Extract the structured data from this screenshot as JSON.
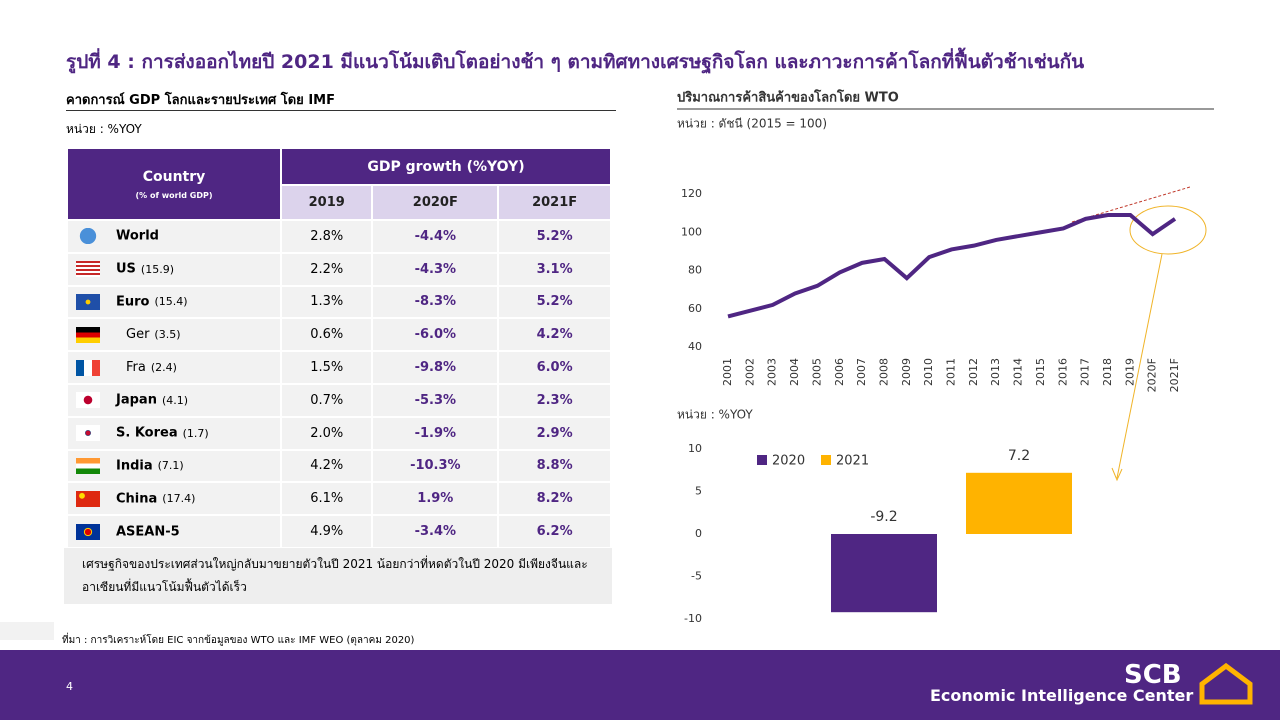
{
  "title": "รูปที่ 4 : การส่งออกไทยปี 2021 มีแนวโน้มเติบโตอย่างช้า ๆ ตามทิศทางเศรษฐกิจโลก และภาวะการค้าโลกที่ฟื้นตัวช้าเช่นกัน",
  "table_section": {
    "title": "คาดการณ์ GDP โลกและรายประเทศ โดย IMF",
    "unit": "หน่วย : %YOY"
  },
  "table": {
    "country_header": "Country",
    "country_subheader": "(% of world GDP)",
    "group_header": "GDP growth (%YOY)",
    "columns": [
      "2019",
      "2020F",
      "2021F"
    ],
    "rows": [
      [
        "World",
        "",
        "2.8%",
        "-4.4%",
        "5.2%"
      ],
      [
        "US",
        "(15.9)",
        "2.2%",
        "-4.3%",
        "3.1%"
      ],
      [
        "Euro",
        "(15.4)",
        "1.3%",
        "-8.3%",
        "5.2%"
      ],
      [
        "Ger",
        "(3.5)",
        "0.6%",
        "-6.0%",
        "4.2%"
      ],
      [
        "Fra",
        "(2.4)",
        "1.5%",
        "-9.8%",
        "6.0%"
      ],
      [
        "Japan",
        "(4.1)",
        "0.7%",
        "-5.3%",
        "2.3%"
      ],
      [
        "S. Korea",
        "(1.7)",
        "2.0%",
        "-1.9%",
        "2.9%"
      ],
      [
        "India",
        "(7.1)",
        "4.2%",
        "-10.3%",
        "8.8%"
      ],
      [
        "China",
        "(17.4)",
        "6.1%",
        "1.9%",
        "8.2%"
      ],
      [
        "ASEAN-5",
        "",
        "4.9%",
        "-3.4%",
        "6.2%"
      ]
    ],
    "note": "เศรษฐกิจของประเทศส่วนใหญ่กลับมาขยายตัวในปี 2021 น้อยกว่าที่หดตัวในปี 2020 มีเพียงจีนและอาเซียนที่มีแนวโน้มฟื้นตัวได้เร็ว"
  },
  "source": "ที่มา : การวิเคราะห์โดย EIC จากข้อมูลของ WTO และ IMF WEO (ตุลาคม 2020)",
  "page_number": "4",
  "logo": {
    "name": "SCB",
    "subtitle": "Economic Intelligence Center"
  },
  "chart_data": [
    {
      "type": "line",
      "title": "ปริมาณการค้าสินค้าของโลกโดย WTO",
      "subtitle": "หน่วย : ดัชนี (2015 = 100)",
      "categories": [
        "2001",
        "2002",
        "2003",
        "2004",
        "2005",
        "2006",
        "2007",
        "2008",
        "2009",
        "2010",
        "2011",
        "2012",
        "2013",
        "2014",
        "2015",
        "2016",
        "2017",
        "2018",
        "2019",
        "2020F",
        "2021F"
      ],
      "values": [
        56,
        59,
        62,
        68,
        72,
        79,
        84,
        86,
        76,
        87,
        91,
        93,
        96,
        98,
        100,
        102,
        107,
        109,
        109,
        99,
        107
      ],
      "color": "#4f2683",
      "ylim": [
        40,
        120
      ],
      "yticks": [
        40,
        60,
        80,
        100,
        120
      ]
    },
    {
      "type": "bar",
      "subtitle": "หน่วย : %YOY",
      "series": [
        {
          "name": "2020",
          "color": "#4f2683",
          "values": [
            -9.2
          ]
        },
        {
          "name": "2021",
          "color": "#ffb300",
          "values": [
            7.2
          ]
        }
      ],
      "ylim": [
        -10,
        10
      ],
      "yticks": [
        -10,
        -5,
        0,
        5,
        10
      ],
      "legend": "top-left"
    }
  ]
}
